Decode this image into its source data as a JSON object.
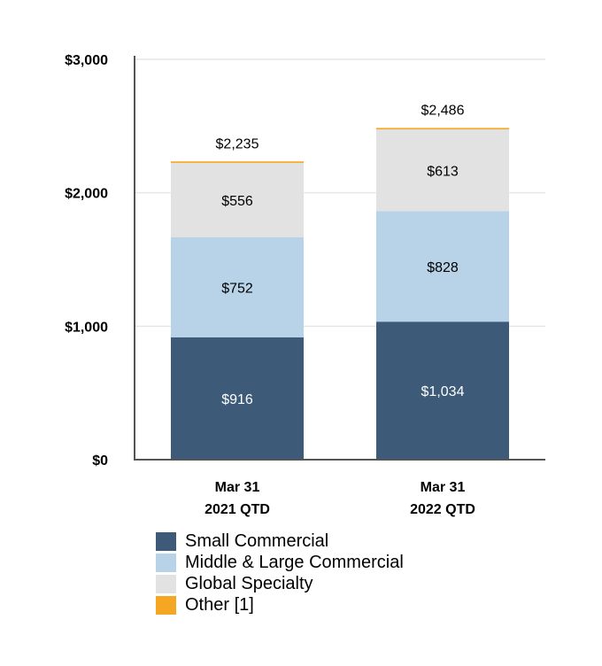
{
  "chart_data": {
    "type": "bar",
    "stacked": true,
    "categories": [
      [
        "Mar 31",
        "2021 QTD"
      ],
      [
        "Mar 31",
        "2022 QTD"
      ]
    ],
    "series": [
      {
        "name": "Small Commercial",
        "values": [
          916,
          1034
        ],
        "labels": [
          "$916",
          "$1,034"
        ],
        "color": "#3d5a78",
        "label_color": "#ffffff"
      },
      {
        "name": "Middle & Large Commercial",
        "values": [
          752,
          828
        ],
        "labels": [
          "$752",
          "$828"
        ],
        "color": "#b8d3e8",
        "label_color": "#000000"
      },
      {
        "name": "Global Specialty",
        "values": [
          556,
          613
        ],
        "labels": [
          "$556",
          "$613"
        ],
        "color": "#e2e2e2",
        "label_color": "#000000"
      },
      {
        "name": "Other [1]",
        "values": [
          11,
          11
        ],
        "labels": [],
        "color": "#f5a623",
        "label_color": "#000000"
      }
    ],
    "totals": [
      "$2,235",
      "$2,486"
    ],
    "yticks": [
      0,
      1000,
      2000,
      3000
    ],
    "ytick_labels": [
      "$0",
      "$1,000",
      "$2,000",
      "$3,000"
    ],
    "ylim": [
      0,
      3000
    ],
    "grid": true,
    "legend_position": "bottom",
    "title": "",
    "xlabel": "",
    "ylabel": ""
  }
}
